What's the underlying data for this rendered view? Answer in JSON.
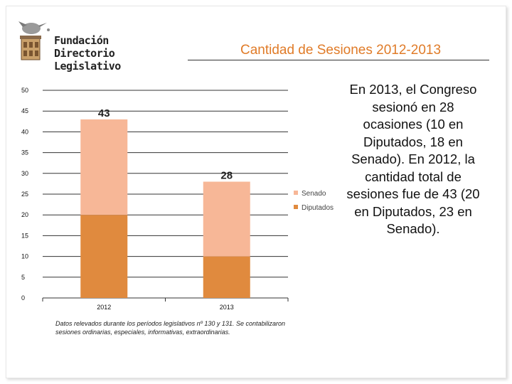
{
  "logo": {
    "line1": "Fundación",
    "line2": "Directorio Legislativo"
  },
  "title": "Cantidad de Sesiones 2012-2013",
  "side_text": "En 2013, el Congreso sesionó en 28 ocasiones (10 en Diputados, 18 en Senado). En 2012, la cantidad total de sesiones fue de 43 (20 en Diputados, 23 en Senado).",
  "note": "Datos relevados durante los períodos legislativos nº 130 y 131. Se contabilizaron sesiones ordinarias, especiales, informativas, extraordinarias.",
  "colors": {
    "senado": "#f7b797",
    "diputados": "#e08a3e",
    "grid": "#333333",
    "title": "#e07b28"
  },
  "chart_data": {
    "type": "bar",
    "stacked": true,
    "categories": [
      "2012",
      "2013"
    ],
    "series": [
      {
        "name": "Diputados",
        "values": [
          20,
          10
        ]
      },
      {
        "name": "Senado",
        "values": [
          23,
          18
        ]
      }
    ],
    "totals": [
      43,
      28
    ],
    "ylim": [
      0,
      50
    ],
    "yticks": [
      0,
      5,
      10,
      15,
      20,
      25,
      30,
      35,
      40,
      45,
      50
    ],
    "grid": true,
    "legend_position": "right",
    "legend": [
      "Senado",
      "Diputados"
    ]
  }
}
